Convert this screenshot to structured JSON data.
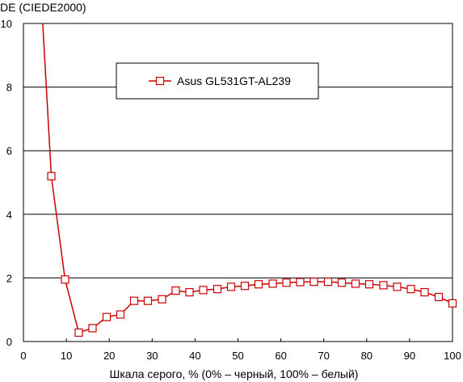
{
  "chart_data": {
    "type": "line",
    "title": "",
    "ylabel": "DE (CIEDE2000)",
    "xlabel": "Шкала серого, % (0% – черный, 100% – белый)",
    "xlim": [
      0,
      100
    ],
    "ylim": [
      0,
      10
    ],
    "xticks": [
      0,
      10,
      20,
      30,
      40,
      50,
      60,
      70,
      80,
      90,
      100
    ],
    "yticks": [
      0,
      2,
      4,
      6,
      8,
      10
    ],
    "grid": "horizontal",
    "legend_position": "top-center",
    "curve_start": {
      "x": 4.5,
      "y": 10.0
    },
    "series": [
      {
        "name": "Asus GL531GT-AL239",
        "color": "#cc0000",
        "marker": "open-square",
        "x": [
          6.5,
          9.7,
          12.9,
          16.1,
          19.4,
          22.6,
          25.8,
          29.0,
          32.3,
          35.5,
          38.7,
          41.9,
          45.2,
          48.4,
          51.6,
          54.8,
          58.1,
          61.3,
          64.5,
          67.7,
          71.0,
          74.2,
          77.4,
          80.6,
          83.9,
          87.1,
          90.3,
          93.5,
          96.8,
          100.0
        ],
        "y": [
          5.2,
          1.95,
          0.28,
          0.42,
          0.77,
          0.85,
          1.28,
          1.28,
          1.33,
          1.6,
          1.55,
          1.62,
          1.65,
          1.72,
          1.75,
          1.8,
          1.82,
          1.85,
          1.87,
          1.88,
          1.88,
          1.85,
          1.82,
          1.8,
          1.77,
          1.72,
          1.65,
          1.55,
          1.4,
          1.2
        ]
      }
    ]
  }
}
